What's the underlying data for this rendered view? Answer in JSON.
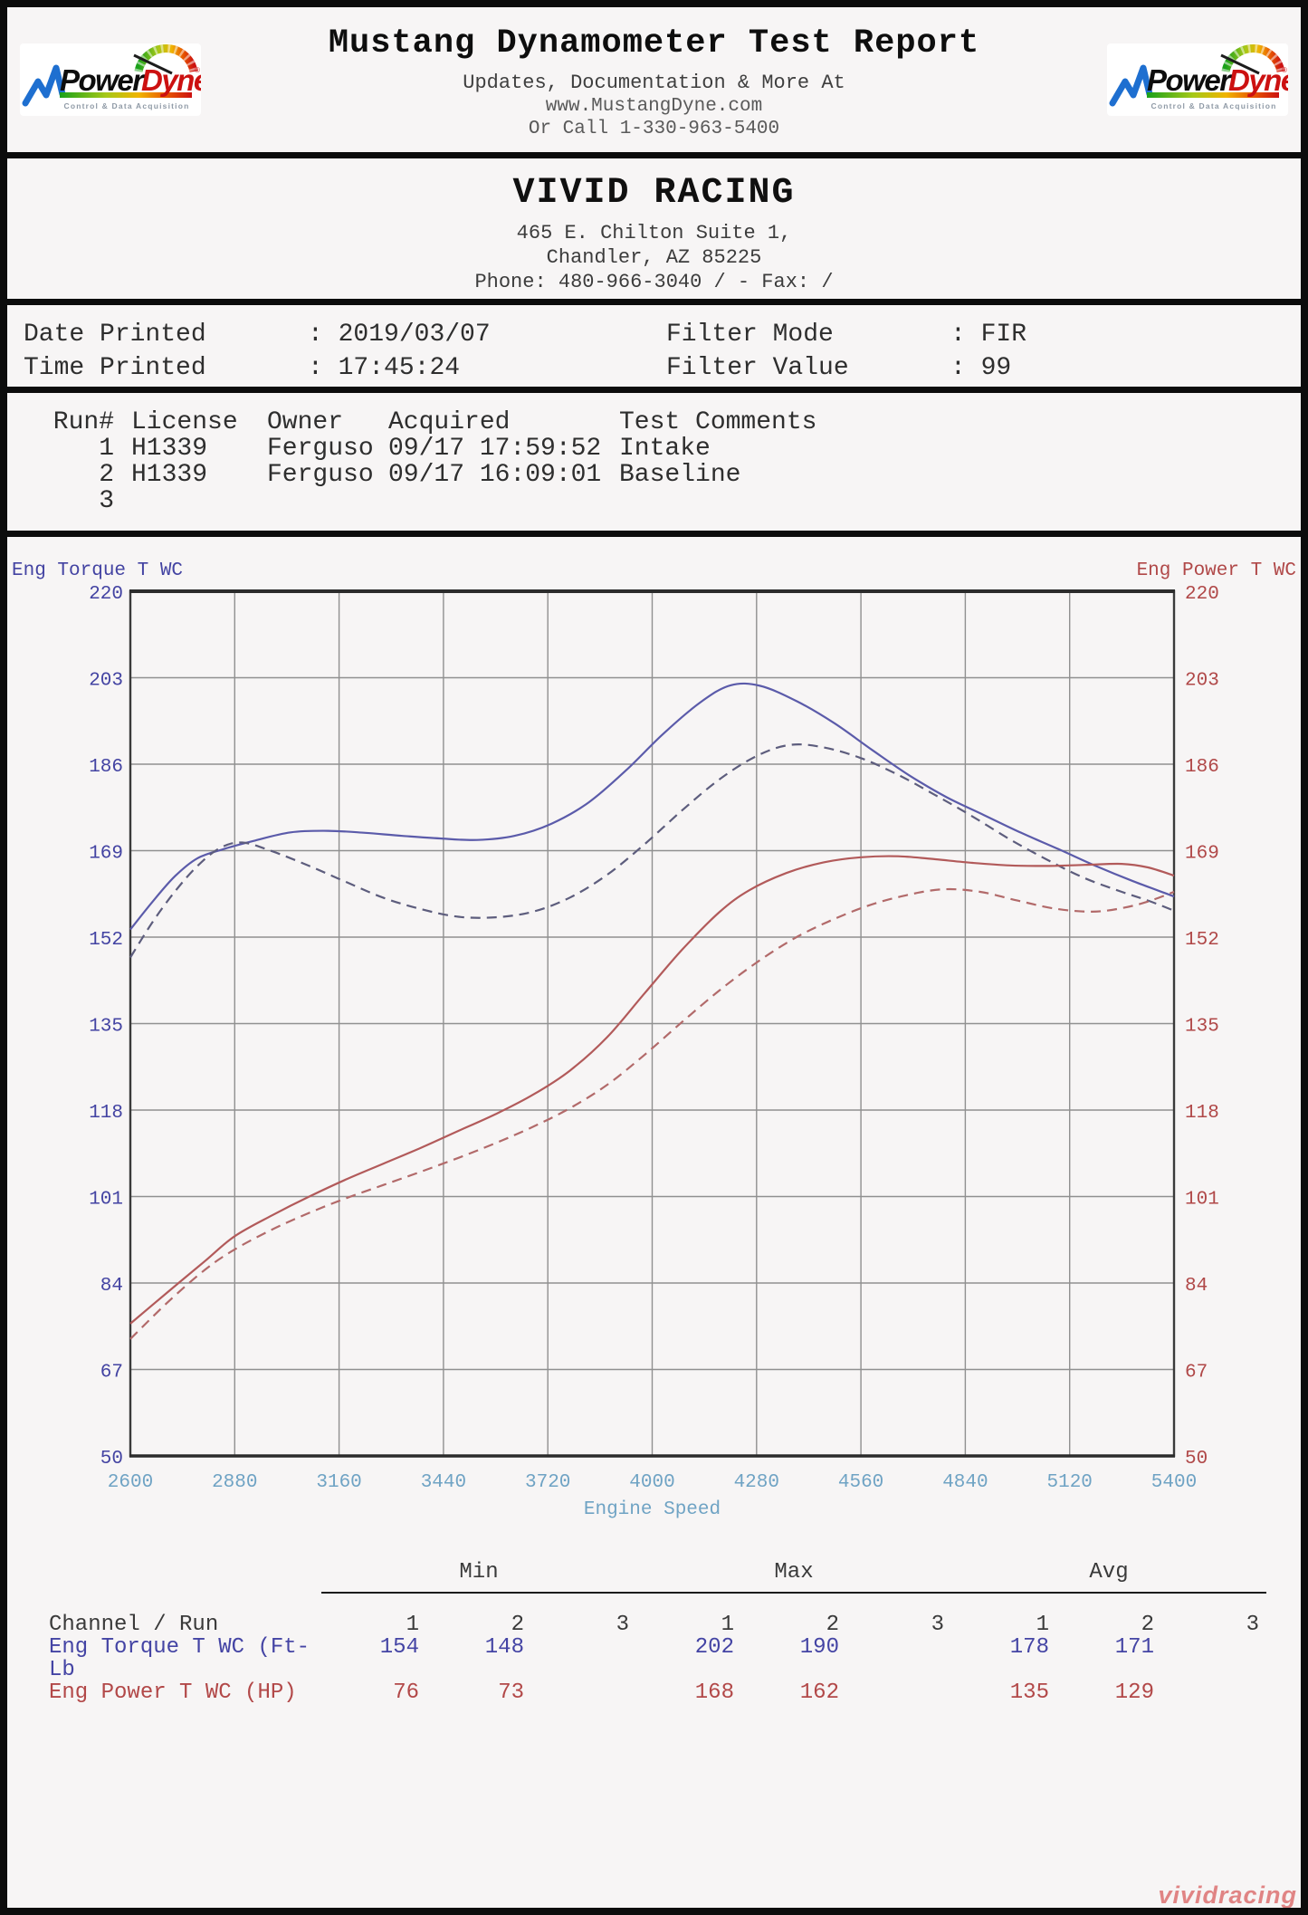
{
  "header": {
    "title": "Mustang Dynamometer Test Report",
    "subtitle1": "Updates, Documentation & More At",
    "subtitle2": "www.MustangDyne.com",
    "subtitle3": "Or Call 1-330-963-5400",
    "logo": {
      "power": "Power",
      "dyne": "Dyne",
      "reg": "®",
      "tagline": "Control & Data Acquisition"
    }
  },
  "shop": {
    "name": "VIVID RACING",
    "address1": "465 E. Chilton Suite 1,",
    "address2": "Chandler, AZ  85225",
    "phone": "Phone: 480-966-3040 /  - Fax:  /"
  },
  "meta": {
    "sep": ":",
    "date_label": "Date Printed",
    "date_value": "2019/03/07",
    "time_label": "Time Printed",
    "time_value": "17:45:24",
    "filter_mode_label": "Filter Mode",
    "filter_mode_value": "FIR",
    "filter_value_label": "Filter Value",
    "filter_value_value": "99"
  },
  "runs": {
    "headers": [
      "Run#",
      "License",
      "Owner",
      "Acquired",
      "Test Comments"
    ],
    "rows": [
      [
        "1",
        "H1339",
        "Ferguso",
        "09/17 17:59:52",
        "Intake"
      ],
      [
        "2",
        "H1339",
        "Ferguso",
        "09/17 16:09:01",
        "Baseline"
      ],
      [
        "3",
        "",
        "",
        "",
        ""
      ]
    ]
  },
  "chart_data": {
    "type": "line",
    "left_axis_label": "Eng Torque T WC",
    "right_axis_label": "Eng Power T WC",
    "xlabel": "Engine Speed",
    "xlim": [
      2600,
      5400
    ],
    "ylim": [
      50,
      220
    ],
    "x_ticks": [
      2600,
      2880,
      3160,
      3440,
      3720,
      4000,
      4280,
      4560,
      4840,
      5120,
      5400
    ],
    "y_ticks": [
      50,
      67,
      84,
      101,
      118,
      135,
      152,
      169,
      186,
      203,
      220
    ],
    "grid": true,
    "legend_position": "none",
    "colors": {
      "torque_axis": "#4343a2",
      "power_axis": "#b04848",
      "x_axis": "#6fa3c4",
      "grid": "#909090",
      "frame": "#3a3a3a"
    },
    "series": [
      {
        "name": "Eng Torque T WC - Run 1 (Intake)",
        "style": "solid",
        "color": "#5b5baa",
        "axis": "left",
        "points": [
          [
            2600,
            153.5
          ],
          [
            2660,
            159
          ],
          [
            2720,
            164
          ],
          [
            2780,
            167.5
          ],
          [
            2850,
            169.3
          ],
          [
            2930,
            170.9
          ],
          [
            3030,
            172.6
          ],
          [
            3130,
            172.9
          ],
          [
            3230,
            172.5
          ],
          [
            3330,
            171.9
          ],
          [
            3430,
            171.4
          ],
          [
            3530,
            171.1
          ],
          [
            3630,
            171.9
          ],
          [
            3730,
            174.3
          ],
          [
            3830,
            178.5
          ],
          [
            3930,
            184.8
          ],
          [
            4030,
            192
          ],
          [
            4130,
            198.2
          ],
          [
            4210,
            201.5
          ],
          [
            4290,
            201.4
          ],
          [
            4390,
            198.3
          ],
          [
            4490,
            194
          ],
          [
            4590,
            188.8
          ],
          [
            4690,
            183.8
          ],
          [
            4790,
            179.5
          ],
          [
            4890,
            176
          ],
          [
            4990,
            172.5
          ],
          [
            5090,
            169.3
          ],
          [
            5190,
            166
          ],
          [
            5290,
            163
          ],
          [
            5400,
            160
          ]
        ]
      },
      {
        "name": "Eng Torque T WC - Run 2 (Baseline)",
        "style": "dashed",
        "color": "#5d5d7d",
        "axis": "left",
        "points": [
          [
            2600,
            148
          ],
          [
            2660,
            155
          ],
          [
            2720,
            161
          ],
          [
            2780,
            166
          ],
          [
            2840,
            169.5
          ],
          [
            2900,
            170.6
          ],
          [
            2980,
            168.9
          ],
          [
            3080,
            166
          ],
          [
            3180,
            162.8
          ],
          [
            3280,
            159.7
          ],
          [
            3380,
            157.5
          ],
          [
            3480,
            156
          ],
          [
            3580,
            155.9
          ],
          [
            3680,
            157
          ],
          [
            3780,
            159.8
          ],
          [
            3880,
            164.3
          ],
          [
            3980,
            170.3
          ],
          [
            4080,
            176.9
          ],
          [
            4180,
            183
          ],
          [
            4280,
            187.6
          ],
          [
            4370,
            189.8
          ],
          [
            4460,
            189.3
          ],
          [
            4560,
            187.2
          ],
          [
            4660,
            183.9
          ],
          [
            4760,
            179.9
          ],
          [
            4860,
            175.7
          ],
          [
            4960,
            171.2
          ],
          [
            5060,
            167.2
          ],
          [
            5160,
            163.6
          ],
          [
            5260,
            160.9
          ],
          [
            5330,
            159.2
          ],
          [
            5400,
            157.2
          ]
        ]
      },
      {
        "name": "Eng Power T WC - Run 1 (Intake)",
        "style": "solid",
        "color": "#b25a5a",
        "axis": "right",
        "points": [
          [
            2600,
            76
          ],
          [
            2700,
            82.2
          ],
          [
            2800,
            88.3
          ],
          [
            2880,
            93.2
          ],
          [
            2980,
            97.3
          ],
          [
            3080,
            101
          ],
          [
            3180,
            104.4
          ],
          [
            3280,
            107.5
          ],
          [
            3380,
            110.6
          ],
          [
            3480,
            113.9
          ],
          [
            3580,
            117.2
          ],
          [
            3680,
            121
          ],
          [
            3780,
            125.8
          ],
          [
            3880,
            132.4
          ],
          [
            3980,
            141
          ],
          [
            4080,
            149.5
          ],
          [
            4180,
            156.9
          ],
          [
            4260,
            161.2
          ],
          [
            4360,
            164.6
          ],
          [
            4460,
            166.7
          ],
          [
            4560,
            167.7
          ],
          [
            4660,
            167.9
          ],
          [
            4760,
            167.3
          ],
          [
            4860,
            166.6
          ],
          [
            4960,
            166.1
          ],
          [
            5060,
            166
          ],
          [
            5160,
            166.2
          ],
          [
            5260,
            166.4
          ],
          [
            5330,
            165.7
          ],
          [
            5400,
            164.1
          ]
        ]
      },
      {
        "name": "Eng Power T WC - Run 2 (Baseline)",
        "style": "dashed",
        "color": "#b26a6a",
        "axis": "right",
        "points": [
          [
            2600,
            73
          ],
          [
            2700,
            80.2
          ],
          [
            2800,
            86.6
          ],
          [
            2880,
            90.6
          ],
          [
            2980,
            94.5
          ],
          [
            3080,
            97.8
          ],
          [
            3180,
            100.7
          ],
          [
            3280,
            103.3
          ],
          [
            3380,
            105.9
          ],
          [
            3480,
            108.6
          ],
          [
            3580,
            111.5
          ],
          [
            3680,
            114.7
          ],
          [
            3780,
            118.4
          ],
          [
            3880,
            123
          ],
          [
            3980,
            128.9
          ],
          [
            4080,
            135.3
          ],
          [
            4180,
            141.5
          ],
          [
            4280,
            147
          ],
          [
            4380,
            151.7
          ],
          [
            4480,
            155.3
          ],
          [
            4580,
            158.2
          ],
          [
            4680,
            160.2
          ],
          [
            4780,
            161.4
          ],
          [
            4880,
            160.9
          ],
          [
            4980,
            159.2
          ],
          [
            5080,
            157.6
          ],
          [
            5180,
            157
          ],
          [
            5260,
            157.7
          ],
          [
            5330,
            159
          ],
          [
            5400,
            160.9
          ]
        ]
      }
    ]
  },
  "stats": {
    "groups": [
      "Min",
      "Max",
      "Avg"
    ],
    "channel_header": "Channel / Run",
    "run_numbers": [
      "1",
      "2",
      "3"
    ],
    "rows": [
      {
        "label": "Eng Torque T WC (Ft-Lb",
        "color": "blue",
        "values": [
          "154",
          "148",
          "",
          "202",
          "190",
          "",
          "178",
          "171",
          ""
        ]
      },
      {
        "label": "Eng Power T WC (HP)",
        "color": "red",
        "values": [
          "76",
          "73",
          "",
          "168",
          "162",
          "",
          "135",
          "129",
          ""
        ]
      }
    ]
  },
  "watermark": "vividracing"
}
